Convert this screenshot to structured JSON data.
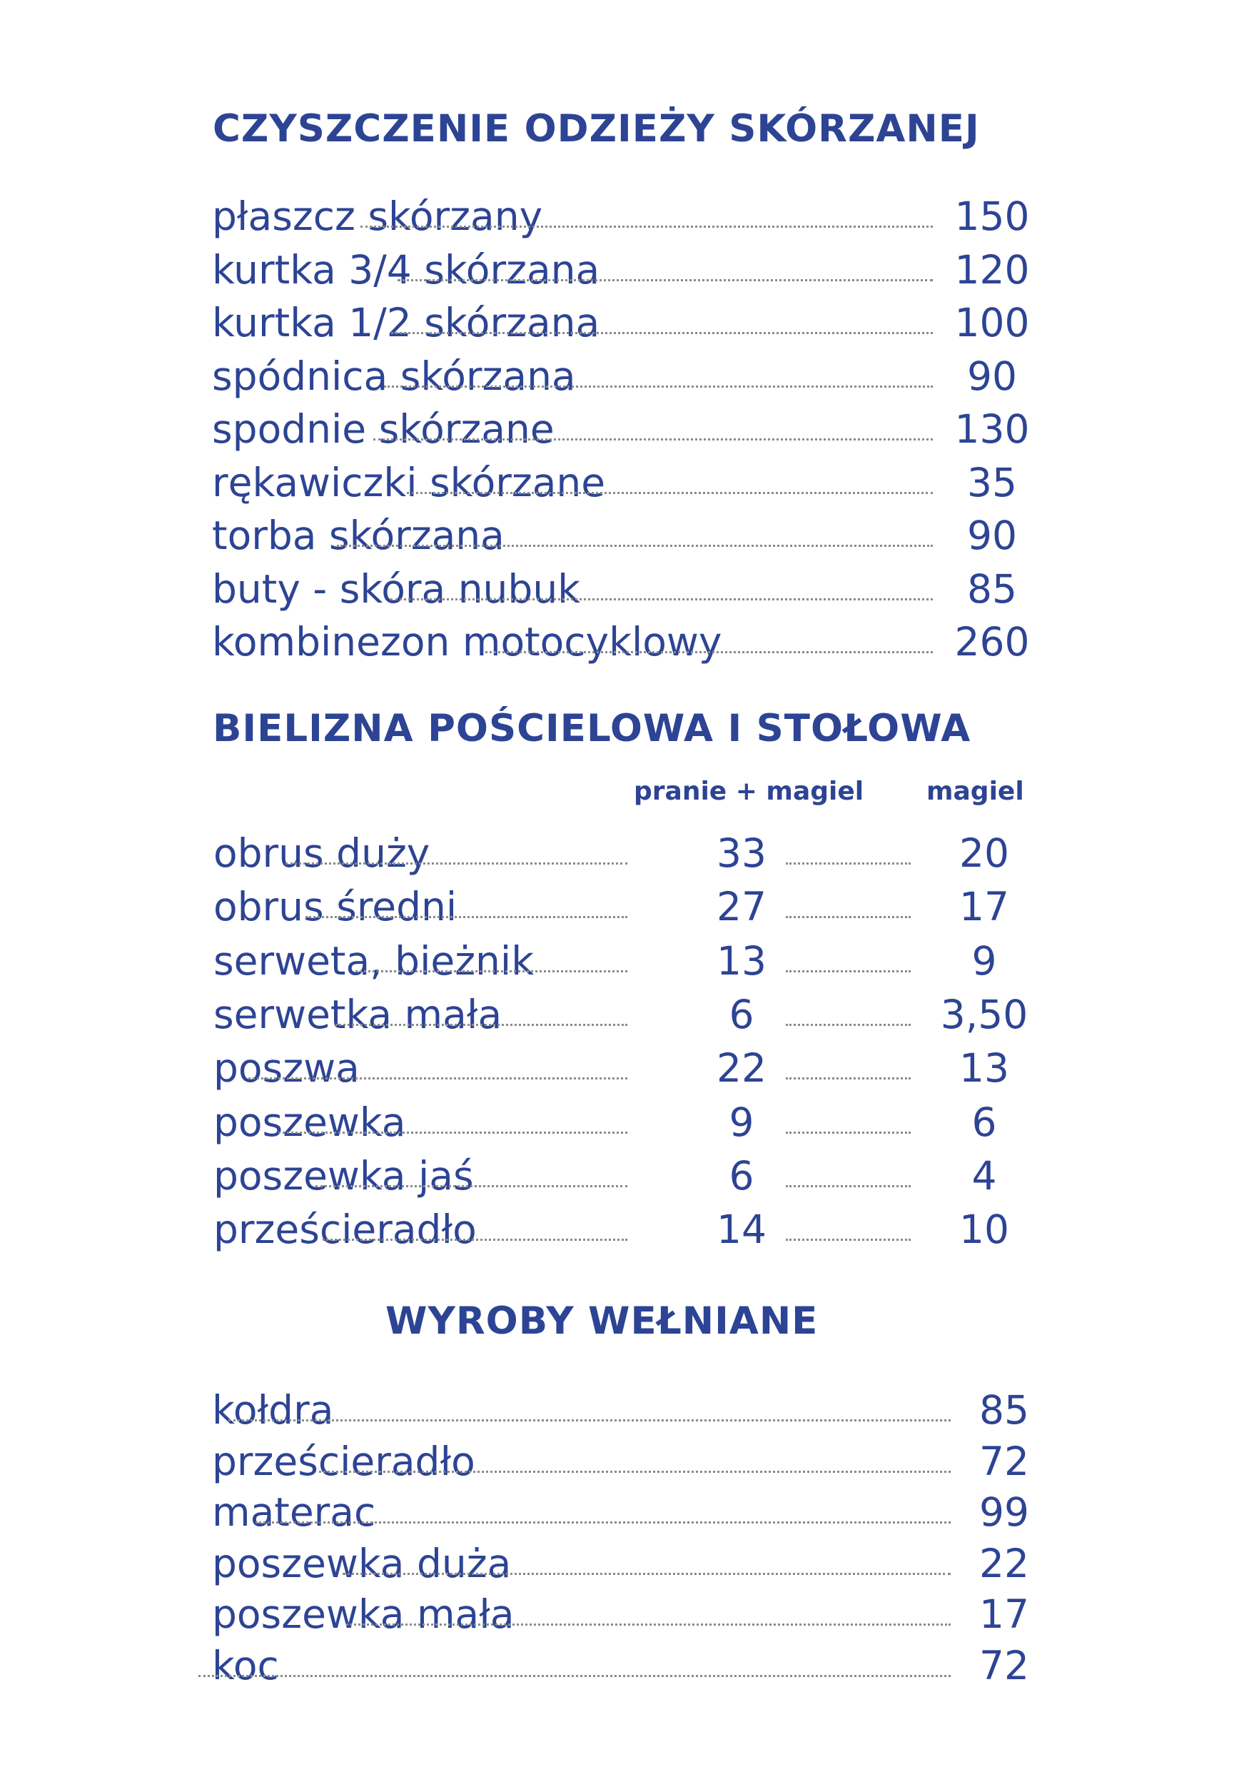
{
  "sections": [
    {
      "title": "CZYSZCZENIE ODZIEŻY SKÓRZANEJ",
      "items": [
        {
          "name": "płaszcz skórzany",
          "price": "150"
        },
        {
          "name": "kurtka 3/4 skórzana",
          "price": "120"
        },
        {
          "name": "kurtka 1/2 skórzana",
          "price": "100"
        },
        {
          "name": "spódnica skórzana",
          "price": "90"
        },
        {
          "name": "spodnie skórzane",
          "price": "130"
        },
        {
          "name": "rękawiczki skórzane",
          "price": "35"
        },
        {
          "name": "torba skórzana",
          "price": "90"
        },
        {
          "name": "buty - skóra nubuk",
          "price": "85"
        },
        {
          "name": "kombinezon motocyklowy",
          "price": "260"
        }
      ]
    },
    {
      "title": "BIELIZNA POŚCIELOWA I STOŁOWA",
      "column_headers": [
        "pranie + magiel",
        "magiel"
      ],
      "items": [
        {
          "name": "obrus duży",
          "price1": "33",
          "price2": "20"
        },
        {
          "name": "obrus średni",
          "price1": "27",
          "price2": "17"
        },
        {
          "name": "serweta, bieżnik",
          "price1": "13",
          "price2": "9"
        },
        {
          "name": "serwetka mała",
          "price1": "6",
          "price2": "3,50"
        },
        {
          "name": "poszwa",
          "price1": "22",
          "price2": "13"
        },
        {
          "name": "poszewka",
          "price1": "9",
          "price2": "6"
        },
        {
          "name": "poszewka jaś",
          "price1": "6",
          "price2": "4"
        },
        {
          "name": "prześcieradło",
          "price1": "14",
          "price2": "10"
        }
      ]
    },
    {
      "title": "WYROBY WEŁNIANE",
      "items": [
        {
          "name": "kołdra",
          "price": "85"
        },
        {
          "name": "prześcieradło",
          "price": "72"
        },
        {
          "name": "materac",
          "price": "99"
        },
        {
          "name": "poszewka duża",
          "price": "22"
        },
        {
          "name": "poszewka mała",
          "price": "17"
        },
        {
          "name": "koc",
          "price": "72"
        }
      ]
    }
  ]
}
